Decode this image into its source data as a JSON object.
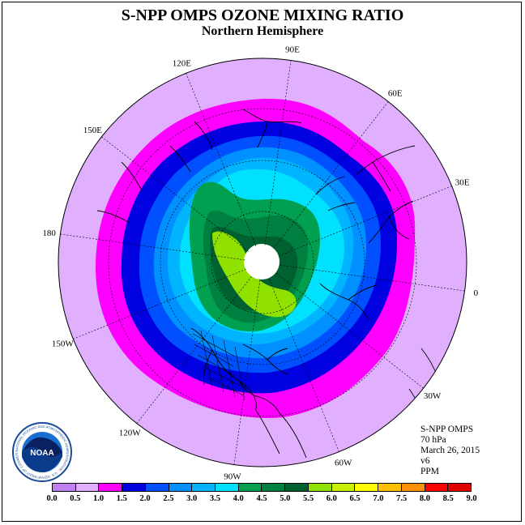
{
  "title": "S-NPP OMPS OZONE MIXING RATIO",
  "subtitle": "Northern Hemisphere",
  "longitude_labels": [
    {
      "text": "90E",
      "lon": 90
    },
    {
      "text": "60E",
      "lon": 60
    },
    {
      "text": "30E",
      "lon": 30
    },
    {
      "text": "0",
      "lon": 0
    },
    {
      "text": "30W",
      "lon": -30
    },
    {
      "text": "60W",
      "lon": -60
    },
    {
      "text": "90W",
      "lon": -90
    },
    {
      "text": "120W",
      "lon": -120
    },
    {
      "text": "150W",
      "lon": -150
    },
    {
      "text": "180",
      "lon": 180
    },
    {
      "text": "150E",
      "lon": 150
    },
    {
      "text": "120E",
      "lon": 120
    }
  ],
  "info": {
    "instrument": "S-NPP OMPS",
    "level": "70 hPa",
    "date": "March 26, 2015",
    "version": "v6",
    "units": "PPM"
  },
  "logo": {
    "text": "NOAA",
    "ring_text": "NATIONAL OCEANIC AND ATMOSPHERIC ADMINISTRATION · U.S. DEPARTMENT OF COMMERCE"
  },
  "colorbar": {
    "ticks": [
      "0.0",
      "0.5",
      "1.0",
      "1.5",
      "2.0",
      "2.5",
      "3.0",
      "3.5",
      "4.0",
      "4.5",
      "5.0",
      "5.5",
      "6.0",
      "6.5",
      "7.0",
      "7.5",
      "8.0",
      "8.5",
      "9.0"
    ],
    "colors": [
      "#c080f0",
      "#e0b0ff",
      "#ff00ff",
      "#0000e0",
      "#0050ff",
      "#0090ff",
      "#00b4ff",
      "#00e0ff",
      "#00a050",
      "#008040",
      "#006030",
      "#90e000",
      "#c8f000",
      "#ffff00",
      "#ffc000",
      "#ff9000",
      "#ff0000",
      "#e00000",
      "#a06040"
    ]
  },
  "map_data": {
    "projection": "north-polar-stereographic",
    "field": "ozone mixing ratio",
    "background_ppm_band": "0.5-1.0",
    "max_ppm_band": "5.5-6.0",
    "polar_gap": true
  }
}
